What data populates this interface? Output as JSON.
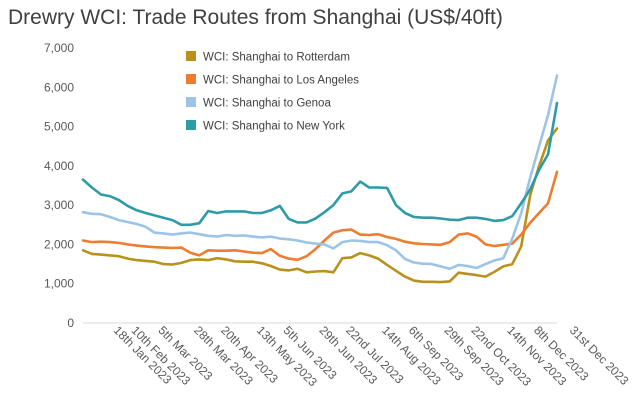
{
  "chart_data": {
    "type": "line",
    "title": "Drewry WCI: Trade Routes from Shanghai (US$/40ft)",
    "xlabel": "",
    "ylabel": "",
    "ylim": [
      0,
      7000
    ],
    "yticks": [
      0,
      1000,
      2000,
      3000,
      4000,
      5000,
      6000,
      7000
    ],
    "ytick_labels": [
      "0",
      "1,000",
      "2,000",
      "3,000",
      "4,000",
      "5,000",
      "6,000",
      "7,000"
    ],
    "x": [
      "4th Jan 2023",
      "11th Jan 2023",
      "18th Jan 2023",
      "25th Jan 2023",
      "1st Feb 2023",
      "8th Feb 2023",
      "15th Feb 2023",
      "22nd Feb 2023",
      "1st Mar 2023",
      "8th Mar 2023",
      "15th Mar 2023",
      "22nd Mar 2023",
      "29th Mar 2023",
      "5th Apr 2023",
      "12th Apr 2023",
      "19th Apr 2023",
      "26th Apr 2023",
      "3rd May 2023",
      "10th May 2023",
      "17th May 2023",
      "24th May 2023",
      "31st May 2023",
      "7th Jun 2023",
      "14th Jun 2023",
      "21st Jun 2023",
      "28th Jun 2023",
      "5th Jul 2023",
      "12th Jul 2023",
      "19th Jul 2023",
      "26th Jul 2023",
      "2nd Aug 2023",
      "9th Aug 2023",
      "16th Aug 2023",
      "23rd Aug 2023",
      "30th Aug 2023",
      "6th Sep 2023",
      "13th Sep 2023",
      "20th Sep 2023",
      "27th Sep 2023",
      "4th Oct 2023",
      "11th Oct 2023",
      "18th Oct 2023",
      "25th Oct 2023",
      "1st Nov 2023",
      "8th Nov 2023",
      "15th Nov 2023",
      "22nd Nov 2023",
      "29th Nov 2023",
      "6th Dec 2023",
      "13th Dec 2023",
      "20th Dec 2023",
      "27th Dec 2023",
      "3rd Jan 2024",
      "10th Jan 2024"
    ],
    "xtick_labels": [
      "18th Jan 2023",
      "10th Feb 2023",
      "5th Mar 2023",
      "28th Mar 2023",
      "20th Apr 2023",
      "13th May 2023",
      "5th Jun 2023",
      "29th Jun 2023",
      "22nd Jul 2023",
      "14th Aug 2023",
      "6th Sep 2023",
      "29th Sep 2023",
      "22nd Oct 2023",
      "14th Nov 2023",
      "8th Dec 2023",
      "31st Dec 2023"
    ],
    "grid": false,
    "legend_position": "top-center",
    "series": [
      {
        "name": "WCI: Shanghai to Rotterdam",
        "color": "#b8921d",
        "values": [
          1850,
          1760,
          1740,
          1720,
          1700,
          1640,
          1600,
          1580,
          1560,
          1500,
          1490,
          1530,
          1600,
          1620,
          1600,
          1650,
          1620,
          1570,
          1560,
          1560,
          1520,
          1450,
          1360,
          1340,
          1380,
          1290,
          1310,
          1320,
          1290,
          1650,
          1670,
          1780,
          1720,
          1640,
          1480,
          1330,
          1180,
          1080,
          1050,
          1050,
          1040,
          1060,
          1280,
          1250,
          1220,
          1180,
          1300,
          1440,
          1500,
          1950,
          3250,
          4000,
          4650,
          4950
        ]
      },
      {
        "name": "WCI: Shanghai to Los Angeles",
        "color": "#ed7d31",
        "values": [
          2100,
          2060,
          2070,
          2060,
          2040,
          2000,
          1970,
          1950,
          1930,
          1920,
          1910,
          1920,
          1790,
          1720,
          1850,
          1840,
          1840,
          1850,
          1820,
          1790,
          1780,
          1880,
          1710,
          1640,
          1610,
          1700,
          1880,
          2100,
          2300,
          2360,
          2380,
          2250,
          2240,
          2260,
          2190,
          2140,
          2070,
          2030,
          2010,
          2000,
          1990,
          2060,
          2250,
          2280,
          2200,
          2000,
          1960,
          1990,
          2020,
          2250,
          2550,
          2800,
          3050,
          3850
        ]
      },
      {
        "name": "WCI: Shanghai to Genoa",
        "color": "#9dc3e6",
        "values": [
          2820,
          2780,
          2770,
          2700,
          2620,
          2570,
          2520,
          2450,
          2300,
          2280,
          2250,
          2280,
          2300,
          2260,
          2220,
          2200,
          2240,
          2220,
          2230,
          2200,
          2180,
          2200,
          2150,
          2130,
          2100,
          2050,
          2020,
          2000,
          1900,
          2060,
          2100,
          2090,
          2060,
          2060,
          1980,
          1850,
          1630,
          1540,
          1510,
          1500,
          1440,
          1380,
          1480,
          1450,
          1400,
          1500,
          1590,
          1650,
          2150,
          2800,
          3700,
          4500,
          5300,
          6300
        ]
      },
      {
        "name": "WCI: Shanghai to New York",
        "color": "#2e9ca6",
        "values": [
          3650,
          3450,
          3270,
          3230,
          3130,
          2980,
          2870,
          2800,
          2740,
          2680,
          2620,
          2500,
          2500,
          2540,
          2850,
          2800,
          2840,
          2840,
          2840,
          2800,
          2800,
          2870,
          2980,
          2650,
          2560,
          2560,
          2660,
          2820,
          3000,
          3300,
          3350,
          3600,
          3450,
          3450,
          3440,
          3000,
          2800,
          2700,
          2680,
          2680,
          2660,
          2630,
          2620,
          2680,
          2680,
          2650,
          2600,
          2620,
          2720,
          3050,
          3400,
          3900,
          4300,
          5600
        ]
      }
    ]
  }
}
